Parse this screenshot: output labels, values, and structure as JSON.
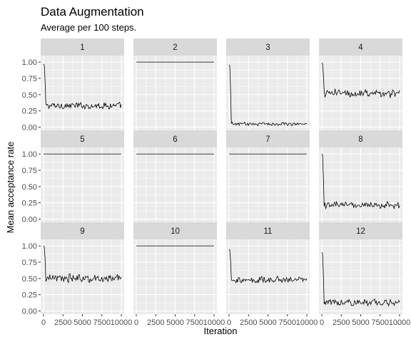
{
  "chart_data": {
    "type": "line",
    "title": "Data Augmentation",
    "subtitle": "Average per 100 steps.",
    "xlabel": "Iteration",
    "ylabel": "Mean acceptance rate",
    "xlim": [
      0,
      10000
    ],
    "ylim": [
      -0.05,
      1.1
    ],
    "x_ticks": [
      0,
      2500,
      5000,
      7500,
      10000
    ],
    "x_tick_labels": [
      "0",
      "2500",
      "5000",
      "7500",
      "10000"
    ],
    "y_ticks": [
      0.0,
      0.25,
      0.5,
      0.75,
      1.0
    ],
    "y_tick_labels": [
      "0.00",
      "0.25",
      "0.50",
      "0.75",
      "1.00"
    ],
    "grid": true,
    "facet_layout": {
      "rows": 3,
      "cols": 4
    },
    "colors": {
      "panel_bg": "#ebebeb",
      "strip_bg": "#d9d9d9",
      "grid": "#ffffff",
      "line": "#000000"
    },
    "step": 100,
    "panels": [
      {
        "label": "1",
        "kind": "noisy",
        "start": 0.97,
        "level": 0.33,
        "noise": 0.04
      },
      {
        "label": "2",
        "kind": "flat",
        "value": 1.0
      },
      {
        "label": "3",
        "kind": "noisy",
        "start": 0.96,
        "level": 0.05,
        "noise": 0.02
      },
      {
        "label": "4",
        "kind": "noisy",
        "start": 0.99,
        "level": 0.52,
        "noise": 0.05
      },
      {
        "label": "5",
        "kind": "flat",
        "value": 1.0
      },
      {
        "label": "6",
        "kind": "flat",
        "value": 1.0
      },
      {
        "label": "7",
        "kind": "flat",
        "value": 1.0
      },
      {
        "label": "8",
        "kind": "noisy",
        "start": 1.0,
        "level": 0.21,
        "noise": 0.04
      },
      {
        "label": "9",
        "kind": "noisy",
        "start": 1.0,
        "level": 0.5,
        "noise": 0.05
      },
      {
        "label": "10",
        "kind": "flat",
        "value": 1.0
      },
      {
        "label": "11",
        "kind": "noisy",
        "start": 0.95,
        "level": 0.48,
        "noise": 0.04
      },
      {
        "label": "12",
        "kind": "noisy",
        "start": 0.9,
        "level": 0.13,
        "noise": 0.04
      }
    ]
  }
}
